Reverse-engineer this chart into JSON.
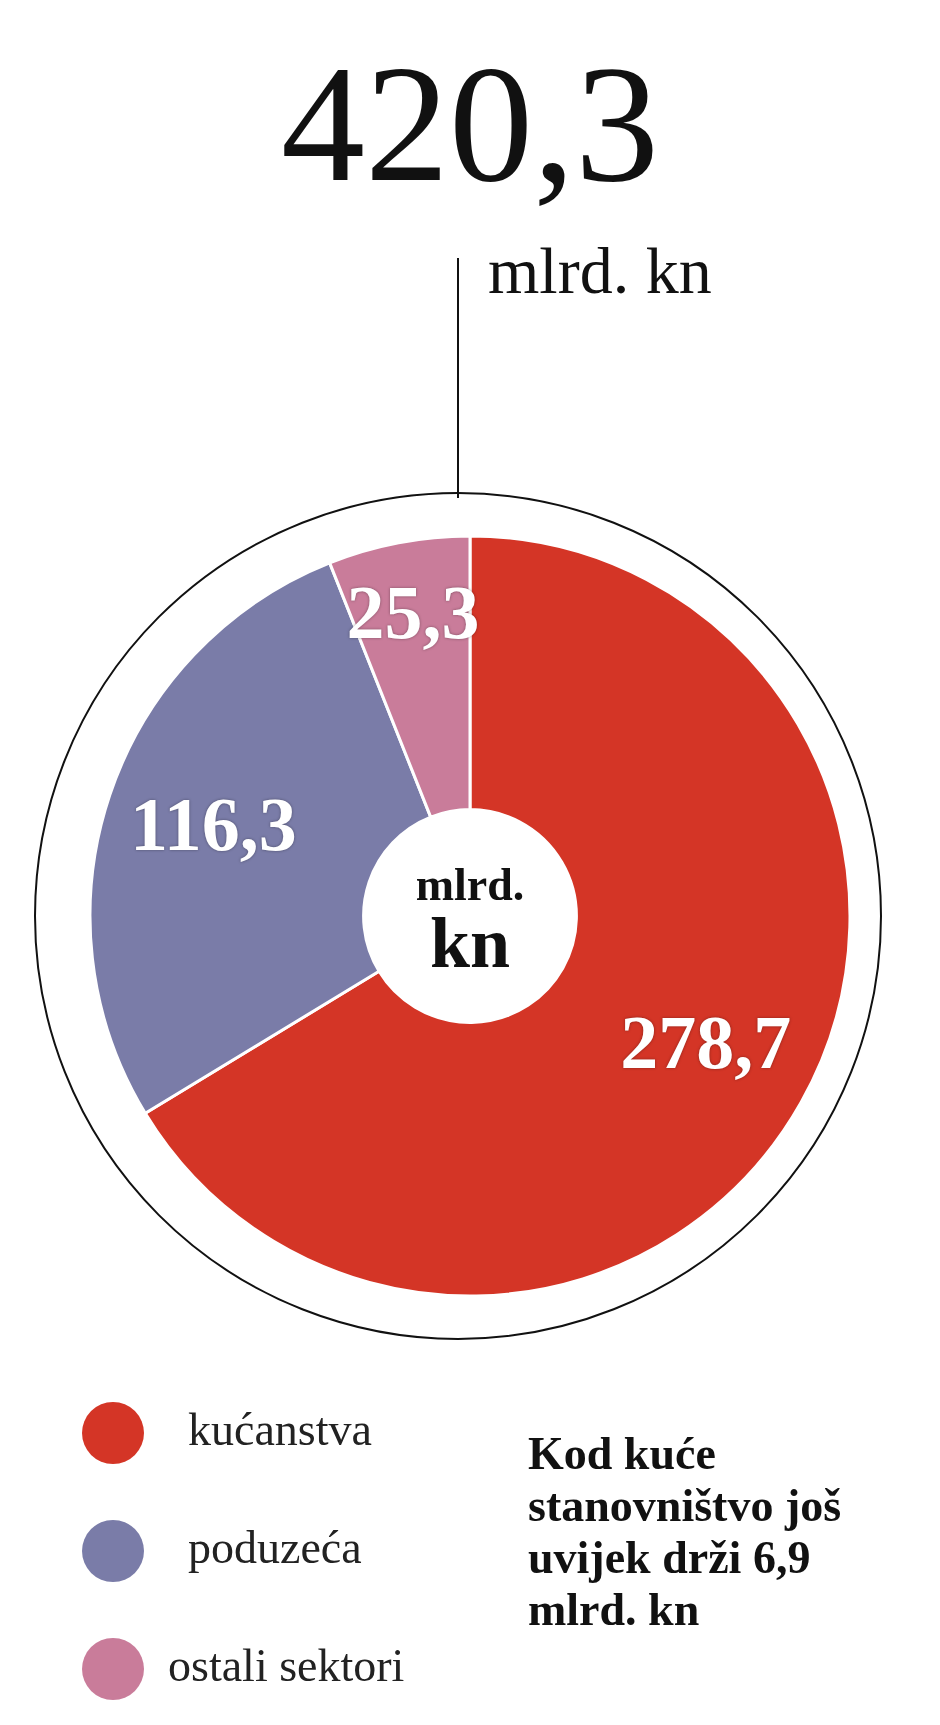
{
  "chart_data": {
    "type": "donut",
    "title": "420,3",
    "subtitle": "mlrd. kn",
    "categories": [
      "kućanstva",
      "poduzeća",
      "ostali sektori"
    ],
    "values": [
      278.7,
      116.3,
      25.3
    ],
    "colors": [
      "#d43526",
      "#7a7ca8",
      "#c97c9a"
    ],
    "value_labels": [
      "278,7",
      "116,3",
      "25,3"
    ],
    "legend": "bottom left",
    "annotations": [
      "mlrd. kn",
      "Kod kuće stanovništvo još uvijek drži 6,9 mlrd.  kn"
    ]
  }
}
